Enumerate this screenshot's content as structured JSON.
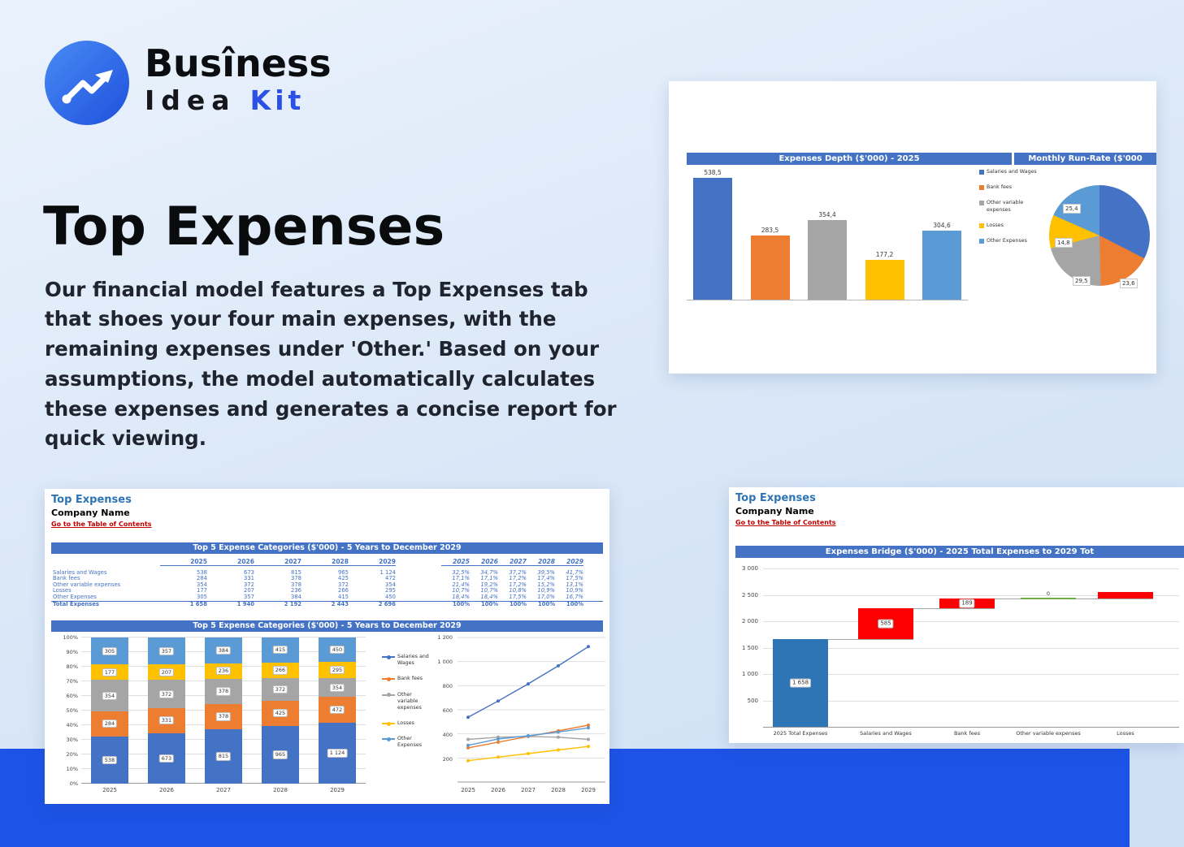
{
  "brand": {
    "name_line1": "Busîness",
    "name_idea": "Idea",
    "name_kit": "Kit"
  },
  "hero": {
    "title": "Top Expenses",
    "description": "Our financial model features a Top Expenses tab that shoes your four main expenses, with the remaining expenses under 'Other.' Based on your assumptions, the model automatically calculates these expenses and generates a concise report for quick viewing."
  },
  "colors": {
    "header_blue": "#4472C4",
    "series_blue": "#4472C4",
    "series_orange": "#ED7D31",
    "series_gray": "#A5A5A5",
    "series_yellow": "#FFC000",
    "series_light_blue": "#5B9BD5",
    "waterfall_total_blue": "#2E75B6",
    "waterfall_increase_red": "#FF0000",
    "waterfall_zero_green": "#70AD47",
    "link_red": "#C00000",
    "sheet_title_blue": "#2E74B5",
    "band_blue": "#1D53E6"
  },
  "legend": [
    "Salaries and Wages",
    "Bank fees",
    "Other variable expenses",
    "Losses",
    "Other Expenses"
  ],
  "sheet_top_right": {
    "bar_chart_title": "Expenses Depth ($'000) - 2025",
    "pie_chart_title": "Monthly Run-Rate ($'000"
  },
  "sheet_bottom_left": {
    "tab_title": "Top Expenses",
    "company": "Company Name",
    "toc_link": "Go to the Table of Contents",
    "table_header": "Top 5 Expense Categories ($'000) - 5 Years to December 2029",
    "chart_header": "Top 5 Expense Categories ($'000) - 5 Years to December 2029",
    "years": [
      "2025",
      "2026",
      "2027",
      "2028",
      "2029"
    ],
    "rows": [
      {
        "label": "Salaries and Wages",
        "values": [
          "538",
          "673",
          "815",
          "965",
          "1 124"
        ],
        "pct": [
          "32,5%",
          "34,7%",
          "37,2%",
          "39,5%",
          "41,7%"
        ]
      },
      {
        "label": "Bank fees",
        "values": [
          "284",
          "331",
          "378",
          "425",
          "472"
        ],
        "pct": [
          "17,1%",
          "17,1%",
          "17,2%",
          "17,4%",
          "17,5%"
        ]
      },
      {
        "label": "Other variable expenses",
        "values": [
          "354",
          "372",
          "378",
          "372",
          "354"
        ],
        "pct": [
          "21,4%",
          "19,2%",
          "17,2%",
          "15,2%",
          "13,1%"
        ]
      },
      {
        "label": "Losses",
        "values": [
          "177",
          "207",
          "236",
          "266",
          "295"
        ],
        "pct": [
          "10,7%",
          "10,7%",
          "10,8%",
          "10,9%",
          "10,9%"
        ]
      },
      {
        "label": "Other Expenses",
        "values": [
          "305",
          "357",
          "384",
          "415",
          "450"
        ],
        "pct": [
          "18,4%",
          "18,4%",
          "17,5%",
          "17,0%",
          "16,7%"
        ]
      }
    ],
    "total": {
      "label": "Total Expenses",
      "values": [
        "1 658",
        "1 940",
        "2 192",
        "2 443",
        "2 696"
      ],
      "pct": [
        "100%",
        "100%",
        "100%",
        "100%",
        "100%"
      ]
    }
  },
  "sheet_bottom_right": {
    "tab_title": "Top Expenses",
    "company": "Company Name",
    "toc_link": "Go to the Table of Contents",
    "chart_header": "Expenses Bridge ($'000) - 2025 Total Expenses to 2029 Tot"
  },
  "chart_data": [
    {
      "type": "bar",
      "title": "Expenses Depth ($'000) - 2025",
      "categories": [
        "Salaries and Wages",
        "Bank fees",
        "Other variable expenses",
        "Losses",
        "Other Expenses"
      ],
      "values": [
        538.5,
        283.5,
        354.4,
        177.2,
        304.6
      ],
      "labels": [
        "538,5",
        "283,5",
        "354,4",
        "177,2",
        "304,6"
      ],
      "ylim": [
        0,
        590
      ],
      "legend_position": "right",
      "grid": false
    },
    {
      "type": "pie",
      "title": "Monthly Run-Rate ($'000",
      "slices": [
        {
          "name": "Salaries and Wages",
          "value": 44.9,
          "label": ""
        },
        {
          "name": "Bank fees",
          "value": 23.6,
          "label": "23,6"
        },
        {
          "name": "Other variable expenses",
          "value": 29.5,
          "label": "29,5"
        },
        {
          "name": "Losses",
          "value": 14.8,
          "label": "14,8"
        },
        {
          "name": "Other Expenses",
          "value": 25.4,
          "label": "25,4"
        }
      ]
    },
    {
      "type": "bar",
      "subtype": "stacked-100",
      "title": "Top 5 Expense Categories ($'000) - 5 Years to December 2029",
      "categories": [
        "2025",
        "2026",
        "2027",
        "2028",
        "2029"
      ],
      "series": [
        {
          "name": "Salaries and Wages",
          "values": [
            538,
            673,
            815,
            965,
            1124
          ],
          "labels": [
            "538",
            "673",
            "815",
            "965",
            "1 124"
          ],
          "pct": [
            32.5,
            34.7,
            37.2,
            39.5,
            41.7
          ]
        },
        {
          "name": "Bank fees",
          "values": [
            284,
            331,
            378,
            425,
            472
          ],
          "labels": [
            "284",
            "331",
            "378",
            "425",
            "472"
          ],
          "pct": [
            17.1,
            17.1,
            17.2,
            17.4,
            17.5
          ]
        },
        {
          "name": "Other variable expenses",
          "values": [
            354,
            372,
            378,
            372,
            354
          ],
          "labels": [
            "354",
            "372",
            "378",
            "372",
            "354"
          ],
          "pct": [
            21.4,
            19.2,
            17.2,
            15.2,
            13.1
          ]
        },
        {
          "name": "Losses",
          "values": [
            177,
            207,
            236,
            266,
            295
          ],
          "labels": [
            "177",
            "207",
            "236",
            "266",
            "295"
          ],
          "pct": [
            10.7,
            10.7,
            10.8,
            10.9,
            10.9
          ]
        },
        {
          "name": "Other Expenses",
          "values": [
            305,
            357,
            384,
            415,
            450
          ],
          "labels": [
            "305",
            "357",
            "384",
            "415",
            "450"
          ],
          "pct": [
            18.4,
            18.4,
            17.5,
            17.0,
            16.7
          ]
        }
      ],
      "ylabels": [
        "100%",
        "90%",
        "80%",
        "70%",
        "60%",
        "50%",
        "40%",
        "30%",
        "20%",
        "10%",
        "0%"
      ],
      "grid": true,
      "legend_position": "right"
    },
    {
      "type": "line",
      "categories": [
        "2025",
        "2026",
        "2027",
        "2028",
        "2029"
      ],
      "series": [
        {
          "name": "Salaries and Wages",
          "values": [
            538,
            673,
            815,
            965,
            1124
          ]
        },
        {
          "name": "Bank fees",
          "values": [
            284,
            331,
            378,
            425,
            472
          ]
        },
        {
          "name": "Other variable expenses",
          "values": [
            354,
            372,
            378,
            372,
            354
          ]
        },
        {
          "name": "Losses",
          "values": [
            177,
            207,
            236,
            266,
            295
          ]
        },
        {
          "name": "Other Expenses",
          "values": [
            305,
            357,
            384,
            415,
            450
          ]
        }
      ],
      "ylim": [
        0,
        1200
      ],
      "ytick_values": [
        1200,
        1000,
        800,
        600,
        400,
        200
      ],
      "ytick_labels": [
        "1 200",
        "1 000",
        "800",
        "600",
        "400",
        "200"
      ],
      "grid": true
    },
    {
      "type": "waterfall",
      "title": "Expenses Bridge ($'000) - 2025 Total Expenses to 2029 Tot",
      "categories": [
        "2025 Total Expenses",
        "Salaries and Wages",
        "Bank fees",
        "Other variable expenses",
        "Losses"
      ],
      "bars": [
        {
          "start": 0,
          "end": 1658,
          "label": "1 658",
          "color": "#2E75B6"
        },
        {
          "start": 1658,
          "end": 2243,
          "label": "585",
          "color": "#FF0000"
        },
        {
          "start": 2243,
          "end": 2432,
          "label": "189",
          "color": "#FF0000"
        },
        {
          "start": 2432,
          "end": 2432,
          "label": "0",
          "color": "#70AD47"
        },
        {
          "start": 2432,
          "end": 2550,
          "label": "",
          "color": "#FF0000"
        }
      ],
      "ylim": [
        0,
        3000
      ],
      "ytick_values": [
        3000,
        2500,
        2000,
        1500,
        1000,
        500
      ],
      "ytick_labels": [
        "3 000",
        "2 500",
        "2 000",
        "1 500",
        "1 000",
        "500"
      ],
      "grid": true
    }
  ]
}
